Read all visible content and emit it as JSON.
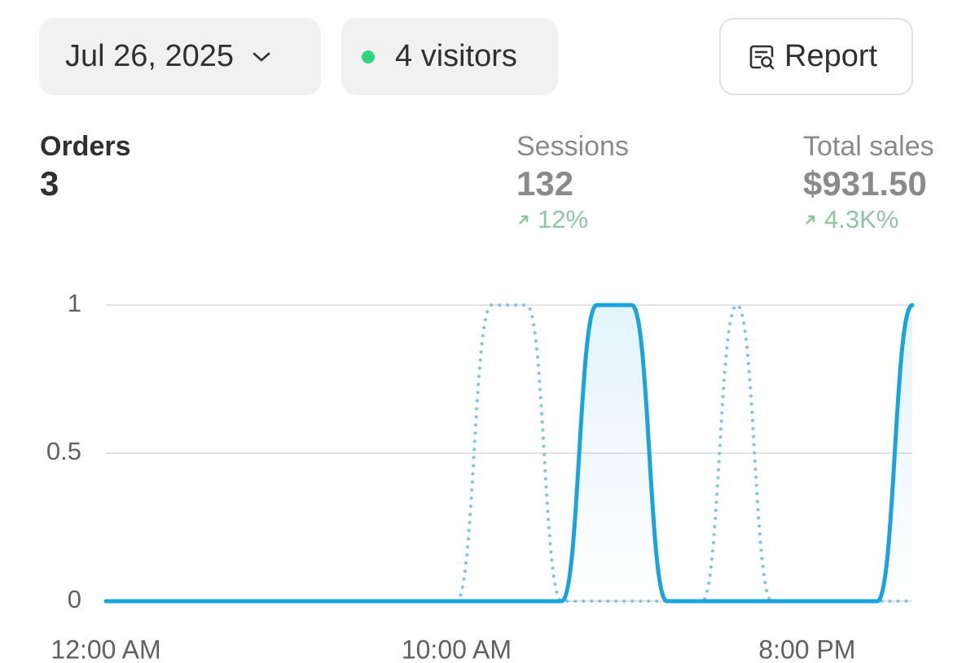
{
  "header": {
    "date": "Jul 26, 2025",
    "visitors": "4 visitors",
    "report": "Report"
  },
  "metrics": [
    {
      "label": "Orders",
      "value": "3"
    },
    {
      "label": "Sessions",
      "value": "132",
      "change": "12%"
    },
    {
      "label": "Total sales",
      "value": "$931.50",
      "change": "4.3K%"
    }
  ],
  "chart_data": {
    "type": "line",
    "categories": [
      "12:00 AM",
      null,
      null,
      null,
      null,
      null,
      null,
      null,
      null,
      null,
      "10:00 AM",
      null,
      null,
      null,
      null,
      null,
      null,
      null,
      null,
      null,
      "8:00 PM",
      null,
      null,
      null
    ],
    "series": [
      {
        "color": "#1ba3de",
        "style": "solid",
        "values": [
          0,
          0,
          0,
          0,
          0,
          0,
          0,
          0,
          0,
          0,
          0,
          0,
          0,
          0,
          1,
          1,
          0,
          0,
          0,
          0,
          0,
          0,
          0,
          1
        ]
      },
      {
        "color": "#7cc4e4",
        "style": "dotted",
        "values": [
          0,
          0,
          0,
          0,
          0,
          0,
          0,
          0,
          0,
          0,
          0,
          1,
          1,
          0,
          0,
          0,
          0,
          0,
          1,
          0,
          0,
          0,
          0,
          0
        ]
      }
    ],
    "ylim": [
      0,
      1
    ],
    "yticks": [
      0,
      0.5,
      1
    ],
    "grid": true
  }
}
